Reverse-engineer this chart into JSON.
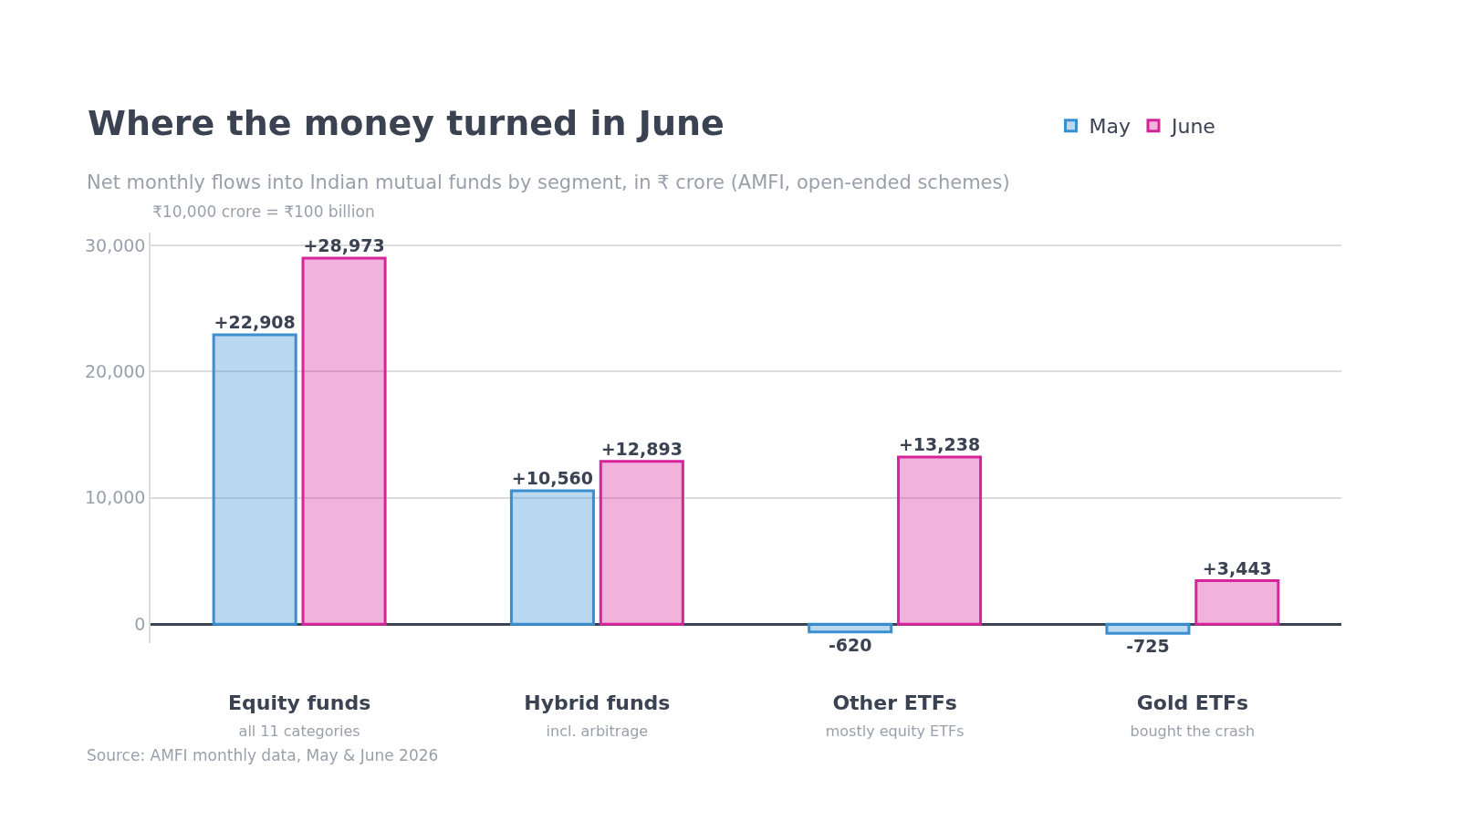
{
  "chart_data": {
    "type": "bar",
    "title": "Where the money turned in June",
    "subtitle": "Net monthly flows into Indian mutual funds by segment, in ₹ crore (AMFI, open-ended schemes)",
    "annotations": [
      "₹10,000 crore = ₹100 billion",
      "Source: AMFI monthly data, May & June 2026"
    ],
    "categories": [
      "Equity funds\nall 11 categories",
      "Hybrid funds\nincl. arbitrage",
      "Other ETFs\nmostly equity ETFs",
      "Gold ETFs\nbought the crash"
    ],
    "series": [
      {
        "name": "May",
        "color": "#3a8fd0",
        "values": [
          22908,
          10560,
          -620,
          -725
        ],
        "value_labels": [
          "+22,908",
          "+10,560",
          "-620",
          "-725"
        ]
      },
      {
        "name": "June",
        "color": "#d6249a",
        "values": [
          28973,
          12893,
          13238,
          3443
        ],
        "value_labels": [
          "+28,973",
          "+12,893",
          "+13,238",
          "+3,443"
        ]
      }
    ],
    "ylim": [
      -1500,
      31000
    ],
    "yticks": [
      0,
      {
        "value": 10000,
        "label": "10,000"
      },
      {
        "value": 20000,
        "label": "20,000"
      },
      {
        "value": 30000,
        "label": "30,000"
      }
    ],
    "grid": "y",
    "legend": "top right"
  }
}
